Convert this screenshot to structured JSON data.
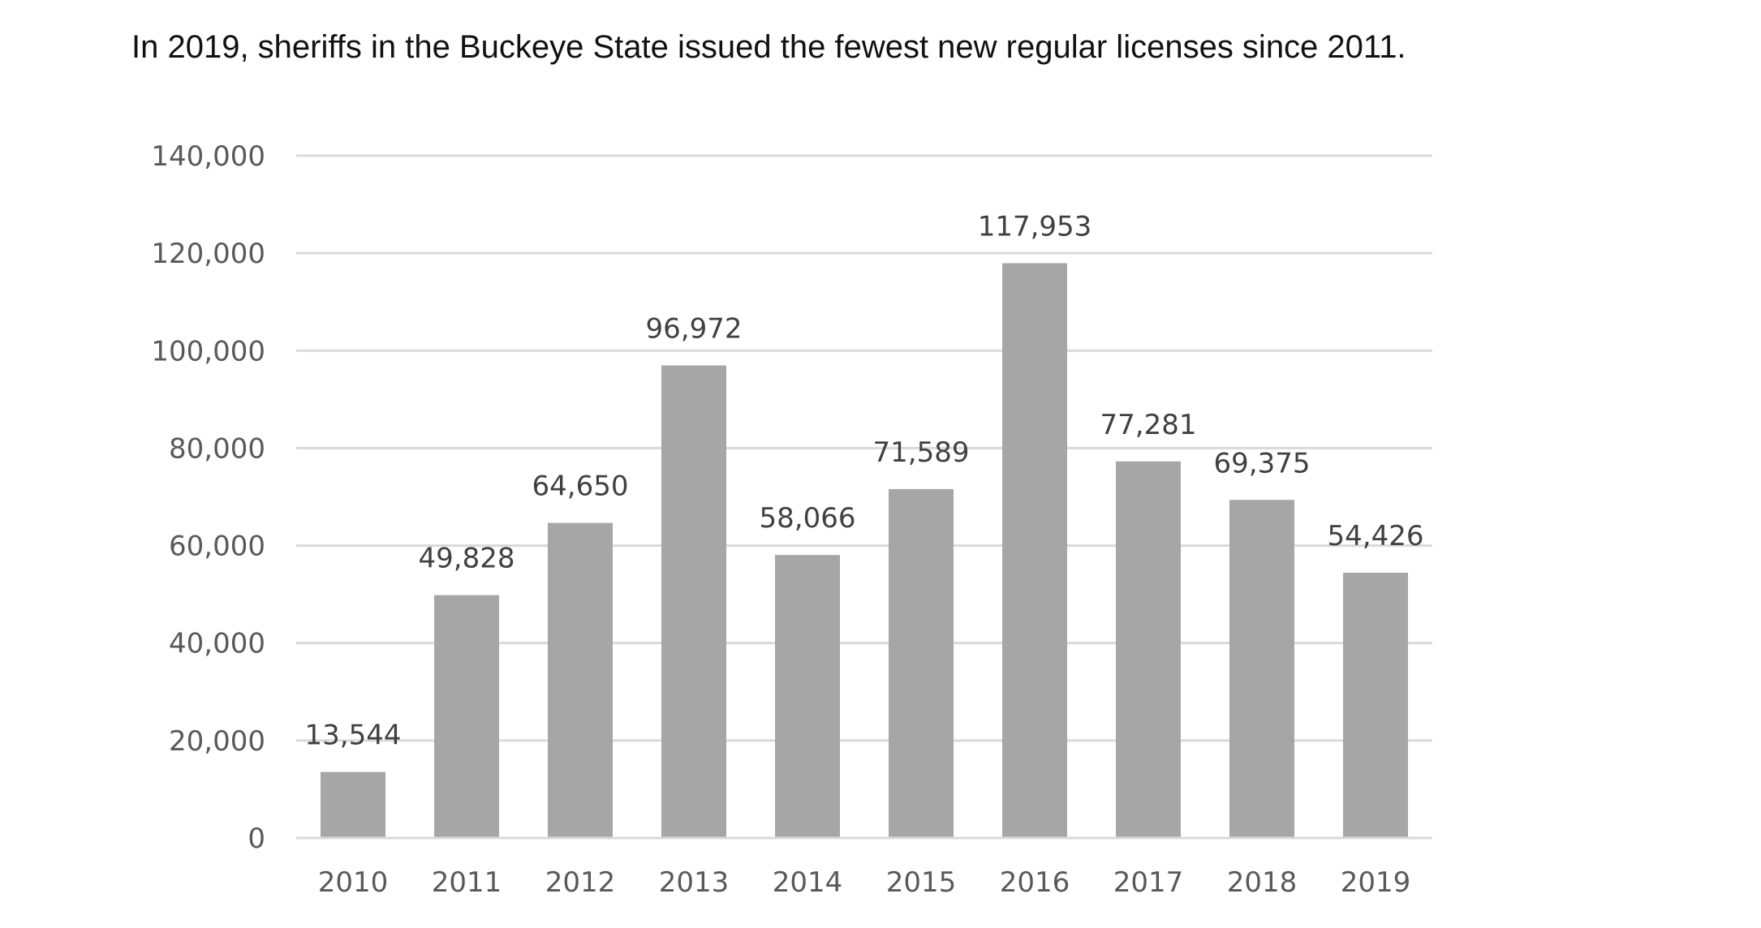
{
  "chart_data": {
    "type": "bar",
    "title": "In 2019, sheriffs in the Buckeye State issued the fewest new regular licenses since 2011.",
    "categories": [
      "2010",
      "2011",
      "2012",
      "2013",
      "2014",
      "2015",
      "2016",
      "2017",
      "2018",
      "2019"
    ],
    "values": [
      13544,
      49828,
      64650,
      96972,
      58066,
      71589,
      117953,
      77281,
      69375,
      54426
    ],
    "data_labels": [
      "13,544",
      "49,828",
      "64,650",
      "96,972",
      "58,066",
      "71,589",
      "117,953",
      "77,281",
      "69,375",
      "54,426"
    ],
    "y_ticks": [
      0,
      20000,
      40000,
      60000,
      80000,
      100000,
      120000,
      140000
    ],
    "y_tick_labels": [
      "0",
      "20,000",
      "40,000",
      "60,000",
      "80,000",
      "100,000",
      "120,000",
      "140,000"
    ],
    "ylim": [
      0,
      140000
    ],
    "xlabel": "",
    "ylabel": "",
    "grid": true,
    "legend": "none",
    "colors": {
      "bar": "#a6a6a6",
      "grid": "#d9d9d9",
      "axis": "#d9d9d9"
    }
  }
}
